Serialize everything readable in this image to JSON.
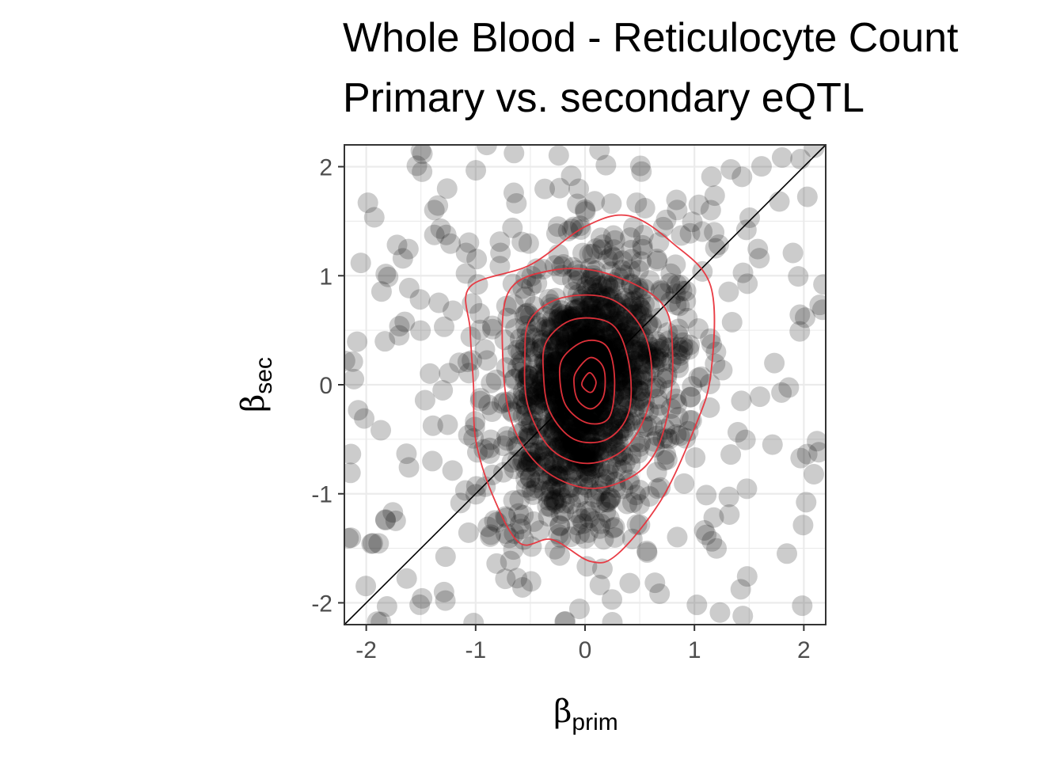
{
  "chart_data": {
    "type": "scatter",
    "title": "Whole Blood - Reticulocyte Count",
    "subtitle": "Primary vs. secondary eQTL",
    "xlabel": {
      "symbol": "β",
      "subscript": "prim"
    },
    "ylabel": {
      "symbol": "β",
      "subscript": "sec"
    },
    "xlim": [
      -2.2,
      2.2
    ],
    "ylim": [
      -2.2,
      2.2
    ],
    "x_ticks": [
      -2,
      -1,
      0,
      1,
      2
    ],
    "y_ticks": [
      -2,
      -1,
      0,
      1,
      2
    ],
    "x_tick_labels": [
      "-2",
      "-1",
      "0",
      "1",
      "2"
    ],
    "y_tick_labels": [
      "-2",
      "-1",
      "0",
      "1",
      "2"
    ],
    "grid": true,
    "reference_line": {
      "type": "identity",
      "slope": 1,
      "intercept": 0
    },
    "point_style": {
      "color": "#000000",
      "alpha": 0.2
    },
    "contour_color": "#e8333c",
    "density_contours": [
      {
        "level": 1,
        "points": [
          [
            -1.05,
            0.9
          ],
          [
            -0.5,
            1.1
          ],
          [
            0,
            1.45
          ],
          [
            0.4,
            1.55
          ],
          [
            0.8,
            1.3
          ],
          [
            1.15,
            0.9
          ],
          [
            1.15,
            0.1
          ],
          [
            1.0,
            -0.4
          ],
          [
            0.7,
            -1.05
          ],
          [
            0.3,
            -1.55
          ],
          [
            0.05,
            -1.62
          ],
          [
            -0.3,
            -1.42
          ],
          [
            -0.6,
            -1.45
          ],
          [
            -0.85,
            -1.0
          ],
          [
            -1.0,
            -0.5
          ],
          [
            -1.02,
            0
          ],
          [
            -1.05,
            0.5
          ]
        ]
      },
      {
        "level": 2,
        "points": [
          [
            -0.7,
            0.85
          ],
          [
            -0.3,
            1.05
          ],
          [
            0.2,
            1.02
          ],
          [
            0.7,
            0.75
          ],
          [
            0.8,
            0.3
          ],
          [
            0.75,
            -0.3
          ],
          [
            0.55,
            -0.75
          ],
          [
            0.1,
            -0.95
          ],
          [
            -0.35,
            -0.8
          ],
          [
            -0.65,
            -0.4
          ],
          [
            -0.75,
            0.2
          ]
        ]
      },
      {
        "level": 3,
        "points": [
          [
            -0.5,
            0.6
          ],
          [
            -0.2,
            0.8
          ],
          [
            0.25,
            0.78
          ],
          [
            0.55,
            0.45
          ],
          [
            0.6,
            -0.1
          ],
          [
            0.4,
            -0.55
          ],
          [
            0.05,
            -0.72
          ],
          [
            -0.3,
            -0.6
          ],
          [
            -0.52,
            -0.2
          ],
          [
            -0.55,
            0.25
          ]
        ]
      },
      {
        "level": 4,
        "points": [
          [
            -0.35,
            0.4
          ],
          [
            -0.1,
            0.6
          ],
          [
            0.25,
            0.55
          ],
          [
            0.4,
            0.2
          ],
          [
            0.4,
            -0.25
          ],
          [
            0.2,
            -0.5
          ],
          [
            -0.1,
            -0.5
          ],
          [
            -0.32,
            -0.25
          ],
          [
            -0.38,
            0.1
          ]
        ]
      },
      {
        "level": 5,
        "points": [
          [
            -0.2,
            0.25
          ],
          [
            0,
            0.4
          ],
          [
            0.2,
            0.35
          ],
          [
            0.27,
            0.05
          ],
          [
            0.22,
            -0.3
          ],
          [
            0.02,
            -0.35
          ],
          [
            -0.17,
            -0.2
          ],
          [
            -0.23,
            0.05
          ]
        ]
      },
      {
        "level": 6,
        "points": [
          [
            -0.08,
            0.12
          ],
          [
            0.05,
            0.25
          ],
          [
            0.17,
            0.15
          ],
          [
            0.17,
            -0.1
          ],
          [
            0.06,
            -0.22
          ],
          [
            -0.06,
            -0.15
          ],
          [
            -0.1,
            0
          ]
        ]
      },
      {
        "level": 7,
        "points": [
          [
            -0.03,
            0.01
          ],
          [
            0.04,
            0.11
          ],
          [
            0.1,
            0.03
          ],
          [
            0.07,
            -0.06
          ],
          [
            0.02,
            -0.06
          ]
        ]
      }
    ],
    "series": [
      {
        "name": "",
        "n_points": 1500,
        "distribution": {
          "core": {
            "sd_x": 0.32,
            "sd_y": 0.55,
            "corr": 0.3,
            "weight": 0.6
          },
          "mid": {
            "sd_x": 0.6,
            "sd_y": 0.8,
            "corr": 0.15,
            "weight": 0.25
          },
          "background": {
            "range": [
              -2.2,
              2.2
            ],
            "weight": 0.15
          }
        }
      }
    ]
  }
}
